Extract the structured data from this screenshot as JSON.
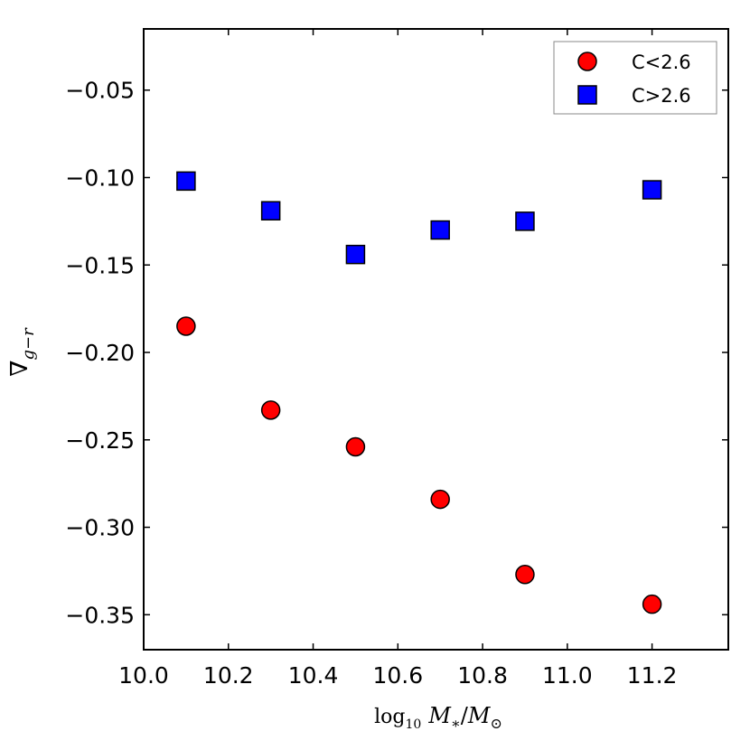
{
  "chart_data": {
    "type": "scatter",
    "title": "",
    "xlabel": "log₁₀ M*/M⊙",
    "ylabel": "∇g−r",
    "xlim": [
      10.0,
      11.38
    ],
    "ylim": [
      -0.37,
      -0.015
    ],
    "xticks": [
      10.0,
      10.2,
      10.4,
      10.6,
      10.8,
      11.0,
      11.2
    ],
    "xtick_labels": [
      "10.0",
      "10.2",
      "10.4",
      "10.6",
      "10.8",
      "11.0",
      "11.2"
    ],
    "yticks": [
      -0.05,
      -0.1,
      -0.15,
      -0.2,
      -0.25,
      -0.3,
      -0.35
    ],
    "ytick_labels": [
      "−0.05",
      "−0.10",
      "−0.15",
      "−0.20",
      "−0.25",
      "−0.30",
      "−0.35"
    ],
    "legend_position": "top-right",
    "grid": false,
    "series": [
      {
        "name": "C<2.6",
        "marker": "circle",
        "color": "#ff0000",
        "points": [
          {
            "x": 10.1,
            "y": -0.185
          },
          {
            "x": 10.3,
            "y": -0.233
          },
          {
            "x": 10.5,
            "y": -0.254
          },
          {
            "x": 10.7,
            "y": -0.284
          },
          {
            "x": 10.9,
            "y": -0.327
          },
          {
            "x": 11.2,
            "y": -0.344
          }
        ]
      },
      {
        "name": "C>2.6",
        "marker": "square",
        "color": "#0000ff",
        "points": [
          {
            "x": 10.1,
            "y": -0.102
          },
          {
            "x": 10.3,
            "y": -0.119
          },
          {
            "x": 10.5,
            "y": -0.144
          },
          {
            "x": 10.7,
            "y": -0.13
          },
          {
            "x": 10.9,
            "y": -0.125
          },
          {
            "x": 11.2,
            "y": -0.107
          }
        ]
      }
    ]
  }
}
